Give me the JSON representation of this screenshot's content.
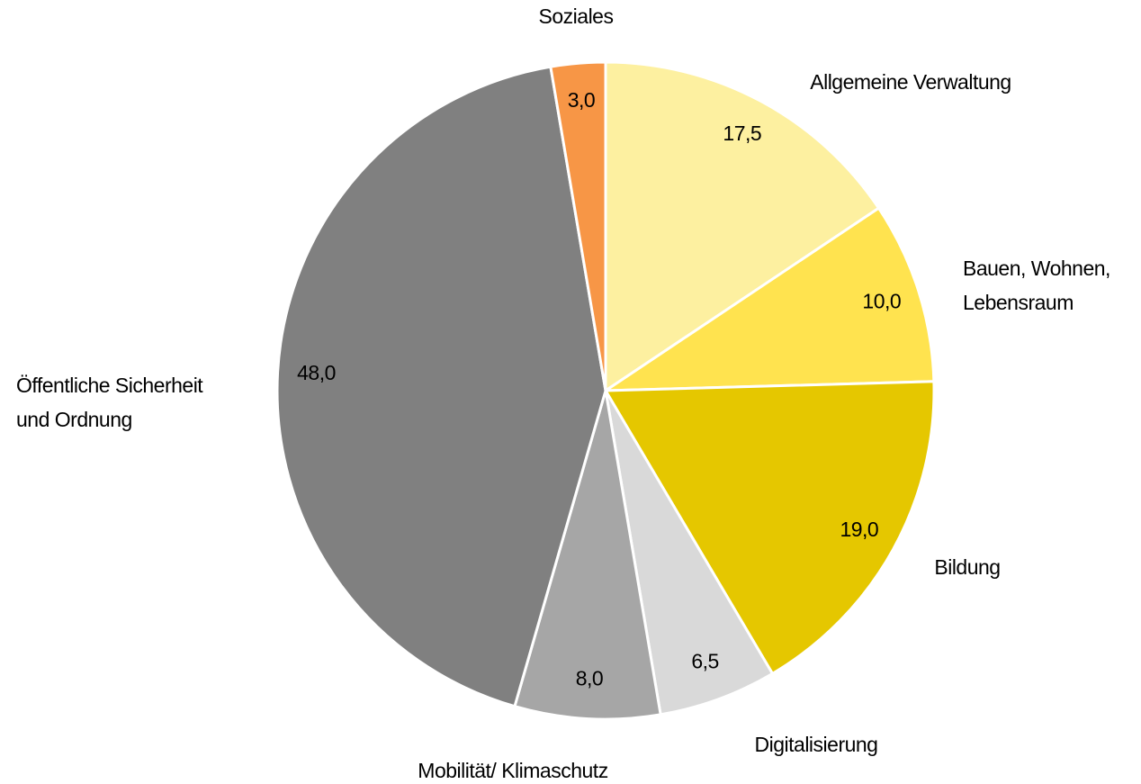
{
  "chart_data": {
    "type": "pie",
    "categories": [
      "Allgemeine Verwaltung",
      "Bauen, Wohnen,\nLebensraum",
      "Bildung",
      "Digitalisierung",
      "Mobilität/ Klimaschutz",
      "Öffentliche Sicherheit\nund Ordnung",
      "Soziales"
    ],
    "values": [
      17.5,
      10.0,
      19.0,
      6.5,
      8.0,
      48.0,
      3.0
    ],
    "value_labels": [
      "17,5",
      "10,0",
      "19,0",
      "6,5",
      "8,0",
      "48,0",
      "3,0"
    ],
    "colors": [
      "#fdf0a0",
      "#ffe34f",
      "#e5c700",
      "#d9d9d9",
      "#a6a6a6",
      "#808080",
      "#f79646"
    ]
  }
}
